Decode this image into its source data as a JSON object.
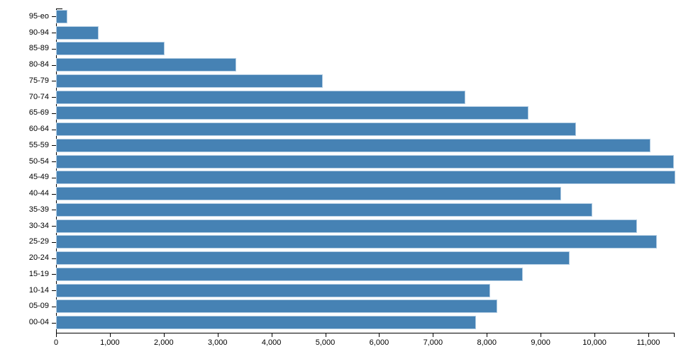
{
  "chart_data": {
    "type": "bar",
    "orientation": "horizontal",
    "title": "",
    "xlabel": "",
    "ylabel": "",
    "categories": [
      "95-eo",
      "90-94",
      "85-89",
      "80-84",
      "75-79",
      "70-74",
      "65-69",
      "60-64",
      "55-59",
      "50-54",
      "45-49",
      "40-44",
      "35-39",
      "30-34",
      "25-29",
      "20-24",
      "15-19",
      "10-14",
      "05-09",
      "00-04"
    ],
    "values": [
      190,
      760,
      1990,
      3320,
      4930,
      7575,
      8750,
      9630,
      11010,
      11450,
      11475,
      9360,
      9940,
      10760,
      11135,
      9515,
      8640,
      8040,
      8170,
      7770
    ],
    "xlim": [
      0,
      11475
    ],
    "x_ticks": [
      0,
      1000,
      2000,
      3000,
      4000,
      5000,
      6000,
      7000,
      8000,
      9000,
      10000,
      11000
    ],
    "x_tick_labels": [
      "0",
      "1,000",
      "2,000",
      "3,000",
      "4,000",
      "5,000",
      "6,000",
      "7,000",
      "8,000",
      "9,000",
      "10,000",
      "11,000"
    ],
    "grid": false,
    "legend": null,
    "bar_color": "#4682b4",
    "bar_edge_color": "#b3cde3",
    "axis_color": "#000000",
    "text_color": "#000000"
  }
}
